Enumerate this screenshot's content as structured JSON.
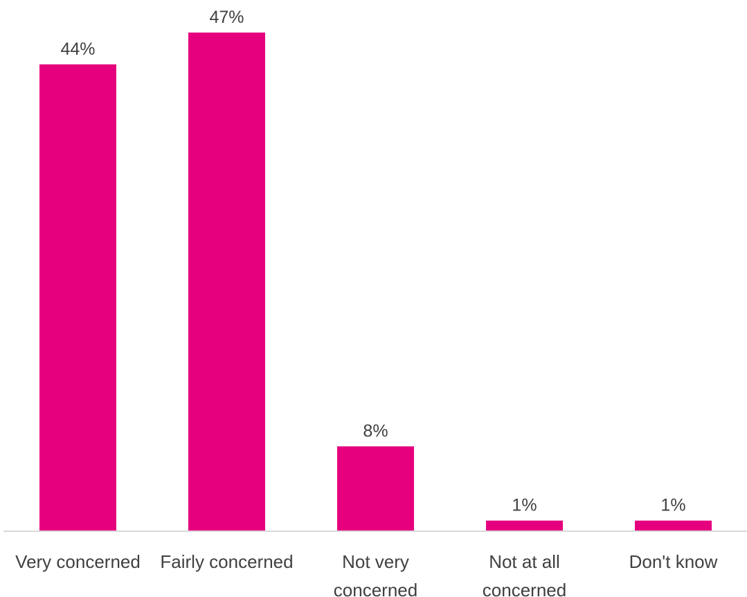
{
  "chart_data": {
    "type": "bar",
    "categories": [
      [
        "Very concerned"
      ],
      [
        "Fairly concerned"
      ],
      [
        "Not very",
        "concerned"
      ],
      [
        "Not at all",
        "concerned"
      ],
      [
        "Don't know"
      ]
    ],
    "values": [
      44,
      47,
      8,
      1,
      1
    ],
    "data_labels": [
      "44%",
      "47%",
      "8%",
      "1%",
      "1%"
    ],
    "bar_color": "#E6007E",
    "axis_color": "#D9D9D9",
    "text_color": "#404040",
    "ylim": [
      0,
      47
    ],
    "grid": false,
    "legend": "none"
  }
}
